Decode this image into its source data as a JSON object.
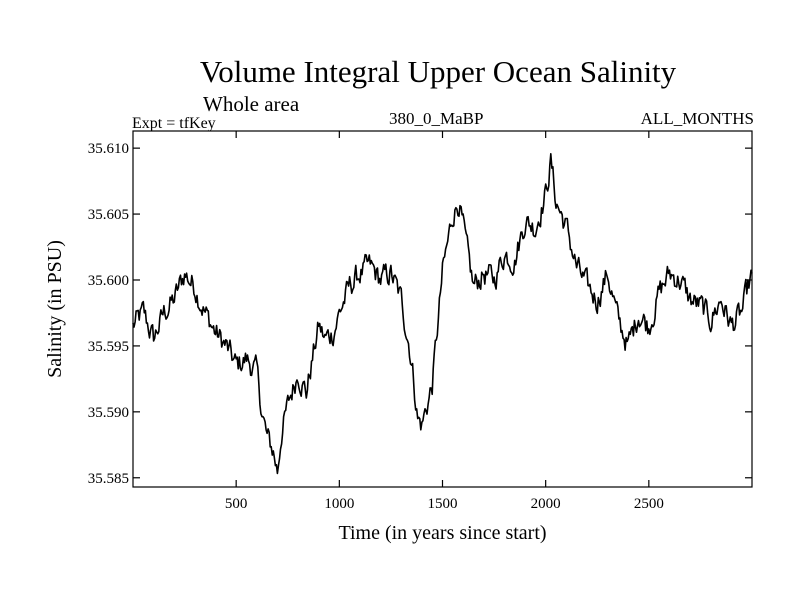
{
  "header": {
    "title": "Volume Integral Upper Ocean Salinity",
    "subtitle": "Whole area",
    "expt": "Expt = tfKey",
    "period": "380_0_MaBP",
    "months": "ALL_MONTHS"
  },
  "chart_data": {
    "type": "line",
    "title": "Volume Integral Upper Ocean Salinity",
    "xlabel": "Time (in years since start)",
    "ylabel": "Salinity (in PSU)",
    "xlim": [
      0,
      3000
    ],
    "ylim": [
      35.5843,
      35.6113
    ],
    "x_ticks": [
      500,
      1000,
      1500,
      2000,
      2500
    ],
    "y_ticks": [
      35.585,
      35.59,
      35.595,
      35.6,
      35.605,
      35.61
    ],
    "y_tick_labels": [
      "35.585",
      "35.590",
      "35.595",
      "35.600",
      "35.605",
      "35.610"
    ],
    "grid": false,
    "series": [
      {
        "x": [
          0,
          50,
          100,
          150,
          200,
          250,
          300,
          350,
          400,
          450,
          500,
          550,
          600,
          625,
          650,
          680,
          700,
          720,
          760,
          800,
          840,
          870,
          900,
          930,
          970,
          1000,
          1050,
          1100,
          1150,
          1200,
          1250,
          1300,
          1340,
          1360,
          1380,
          1400,
          1450,
          1500,
          1550,
          1580,
          1620,
          1650,
          1700,
          1750,
          1800,
          1850,
          1900,
          1950,
          2000,
          2025,
          2050,
          2100,
          2150,
          2200,
          2250,
          2300,
          2350,
          2400,
          2450,
          2500,
          2550,
          2600,
          2650,
          2700,
          2750,
          2800,
          2850,
          2900,
          2950,
          3000
        ],
        "y": [
          35.5965,
          35.5975,
          35.5955,
          35.5975,
          35.5985,
          35.6005,
          35.5995,
          35.5975,
          35.596,
          35.595,
          35.5935,
          35.594,
          35.593,
          35.59,
          35.588,
          35.587,
          35.5855,
          35.5885,
          35.591,
          35.593,
          35.5915,
          35.594,
          35.5965,
          35.5955,
          35.596,
          35.5975,
          35.5995,
          35.6005,
          35.601,
          35.6,
          35.6005,
          35.5985,
          35.595,
          35.5925,
          35.5895,
          35.589,
          35.592,
          35.6005,
          35.605,
          35.606,
          35.602,
          35.5995,
          35.6005,
          35.6,
          35.602,
          35.6015,
          35.6045,
          35.604,
          35.6065,
          35.609,
          35.606,
          35.604,
          35.601,
          35.5995,
          35.5985,
          35.6005,
          35.597,
          35.595,
          35.5975,
          35.5965,
          35.599,
          35.6005,
          35.6,
          35.5985,
          35.598,
          35.597,
          35.5985,
          35.5965,
          35.5975,
          35.6005
        ]
      }
    ]
  }
}
